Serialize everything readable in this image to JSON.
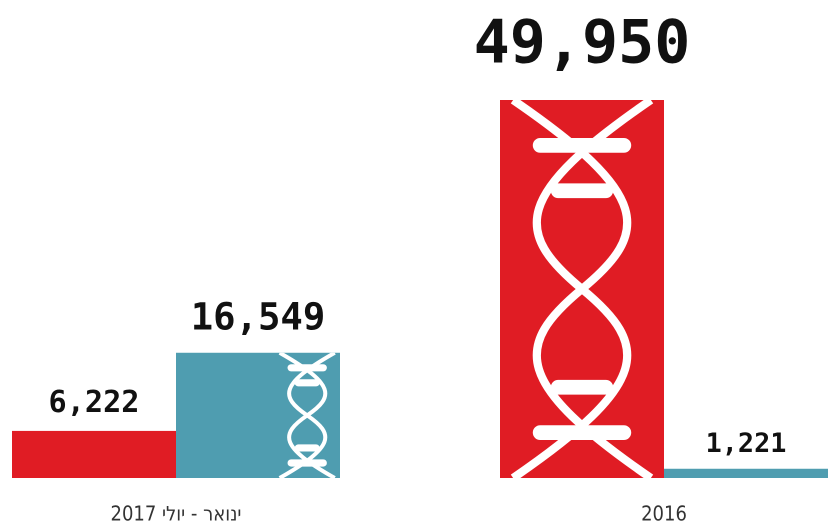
{
  "chart_data": {
    "type": "bar",
    "categories": [
      "ינואר - יולי 2017",
      "2016"
    ],
    "series": [
      {
        "color": "#e01c24",
        "values": [
          6222,
          49950
        ],
        "value_labels": [
          "6,222",
          "49,950"
        ]
      },
      {
        "color": "#4f9db0",
        "values": [
          16549,
          1221
        ],
        "value_labels": [
          "16,549",
          "1,221"
        ]
      }
    ]
  }
}
